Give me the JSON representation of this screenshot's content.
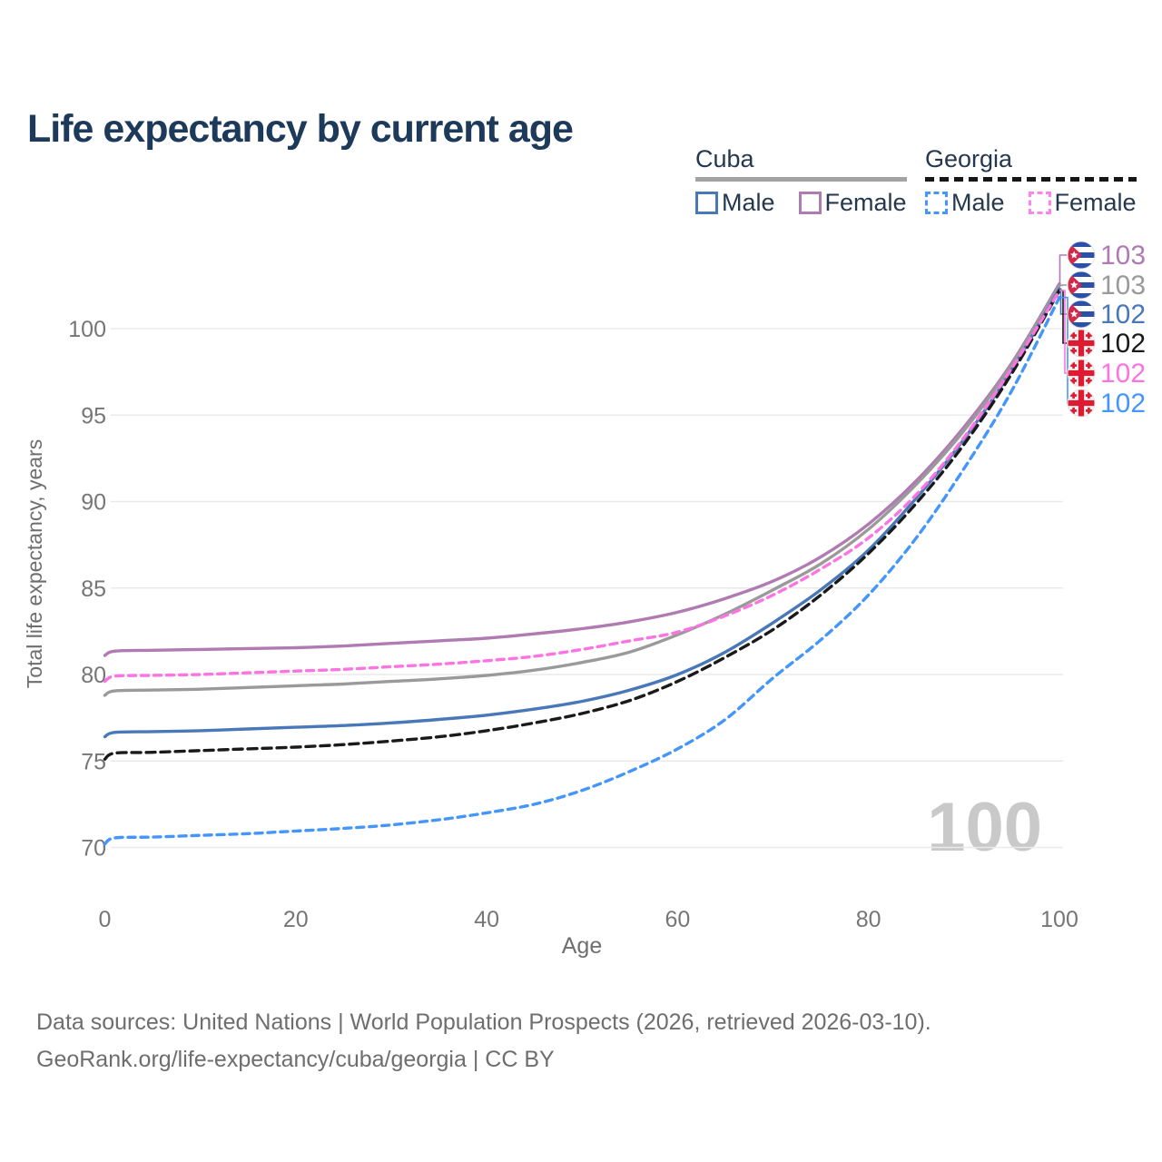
{
  "title": "Life expectancy by current age",
  "legend": {
    "groups": [
      {
        "label": "Cuba",
        "underline_color": "#a3a3a3",
        "underline_dashed": false,
        "items": [
          {
            "label": "Male",
            "color": "#4878b8",
            "dashed": false
          },
          {
            "label": "Female",
            "color": "#b07ab2",
            "dashed": false
          }
        ]
      },
      {
        "label": "Georgia",
        "underline_color": "#161616",
        "underline_dashed": true,
        "items": [
          {
            "label": "Male",
            "color": "#4596fb",
            "dashed": true
          },
          {
            "label": "Female",
            "color": "#fb85e8",
            "dashed": true
          }
        ]
      }
    ]
  },
  "footer": {
    "line1": "Data sources: United Nations | World Population Prospects (2026, retrieved 2026-03-10).",
    "line2": "GeoRank.org/life-expectancy/cuba/georgia | CC BY"
  },
  "chart_data": {
    "type": "line",
    "title": "Life expectancy by current age",
    "xlabel": "Age",
    "ylabel": "Total life expectancy, years",
    "watermark": "100",
    "x_ticks": [
      0,
      20,
      40,
      60,
      80,
      100
    ],
    "y_ticks": [
      70,
      75,
      80,
      85,
      90,
      95,
      100
    ],
    "xlim": [
      0,
      100
    ],
    "ylim": [
      69.5,
      103
    ],
    "grid": "horizontal",
    "legend_position": "top-right",
    "ages": [
      0,
      1,
      5,
      10,
      15,
      20,
      25,
      30,
      35,
      40,
      45,
      50,
      55,
      60,
      65,
      70,
      75,
      80,
      85,
      90,
      95,
      100
    ],
    "series": [
      {
        "name": "Cuba Female",
        "color": "#b07ab2",
        "dashed": false,
        "flag": "cuba",
        "end_label": "103",
        "values": [
          81.1,
          81.35,
          81.4,
          81.45,
          81.5,
          81.55,
          81.65,
          81.8,
          81.95,
          82.1,
          82.35,
          82.65,
          83.05,
          83.6,
          84.4,
          85.4,
          86.8,
          88.7,
          91.2,
          94.3,
          98.0,
          102.6
        ]
      },
      {
        "name": "Cuba All",
        "color": "#9a9a9a",
        "dashed": false,
        "flag": "cuba",
        "end_label": "103",
        "values": [
          78.8,
          79.05,
          79.1,
          79.15,
          79.25,
          79.35,
          79.45,
          79.6,
          79.75,
          79.95,
          80.25,
          80.7,
          81.3,
          82.3,
          83.5,
          84.9,
          86.4,
          88.4,
          91.0,
          94.1,
          97.9,
          102.5
        ]
      },
      {
        "name": "Cuba Male",
        "color": "#4878b8",
        "dashed": false,
        "flag": "cuba",
        "end_label": "102",
        "values": [
          76.4,
          76.65,
          76.7,
          76.75,
          76.85,
          76.95,
          77.05,
          77.2,
          77.4,
          77.65,
          78.0,
          78.45,
          79.1,
          80.0,
          81.3,
          83.0,
          84.9,
          87.2,
          90.2,
          93.6,
          97.6,
          102.3
        ]
      },
      {
        "name": "Georgia All",
        "color": "#1a1a1a",
        "dashed": true,
        "flag": "georgia",
        "end_label": "102",
        "values": [
          75.1,
          75.45,
          75.5,
          75.6,
          75.7,
          75.8,
          75.95,
          76.15,
          76.4,
          76.75,
          77.2,
          77.75,
          78.5,
          79.6,
          81.0,
          82.6,
          84.6,
          87.0,
          89.9,
          93.3,
          97.4,
          102.2
        ]
      },
      {
        "name": "Georgia Female",
        "color": "#fb74e2",
        "dashed": true,
        "flag": "georgia",
        "end_label": "102",
        "values": [
          79.6,
          79.9,
          79.95,
          80.0,
          80.1,
          80.2,
          80.3,
          80.45,
          80.6,
          80.8,
          81.05,
          81.45,
          81.95,
          82.45,
          83.4,
          84.6,
          86.1,
          87.9,
          90.4,
          93.7,
          97.7,
          102.2
        ]
      },
      {
        "name": "Georgia Male",
        "color": "#4596fb",
        "dashed": true,
        "flag": "georgia",
        "end_label": "102",
        "values": [
          70.2,
          70.55,
          70.6,
          70.7,
          70.8,
          70.95,
          71.1,
          71.3,
          71.6,
          72.0,
          72.5,
          73.3,
          74.4,
          75.7,
          77.4,
          79.8,
          82.0,
          84.6,
          87.9,
          91.9,
          96.4,
          101.8
        ]
      }
    ]
  }
}
